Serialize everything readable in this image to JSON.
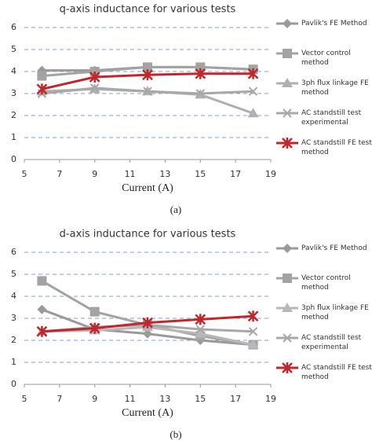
{
  "chart_data": [
    {
      "type": "line",
      "title": "q-axis inductance for various tests",
      "x_label": "Current (A)",
      "caption": "(a)",
      "x": [
        6,
        9,
        12,
        15,
        18
      ],
      "xlim": [
        5,
        19
      ],
      "xticks": [
        5,
        7,
        9,
        11,
        13,
        15,
        17,
        19
      ],
      "ylim": [
        0,
        6
      ],
      "yticks": [
        0,
        1,
        2,
        3,
        4,
        5,
        6
      ],
      "grid": true,
      "series": [
        {
          "name": "Pavlik's FE Method",
          "color": "#9a9a9a",
          "marker": "diamond",
          "values": [
            4.05,
            4.05,
            4.2,
            4.2,
            4.1
          ]
        },
        {
          "name": "Vector control method",
          "color": "#a3a3a3",
          "marker": "square",
          "values": [
            3.8,
            4.0,
            4.2,
            4.2,
            4.1
          ]
        },
        {
          "name": "3ph flux linkage FE method",
          "color": "#b0b0b0",
          "marker": "triangle",
          "values": [
            3.1,
            3.2,
            3.1,
            2.95,
            2.1
          ]
        },
        {
          "name": "AC standstill test experimental",
          "color": "#a8a8a8",
          "marker": "x",
          "values": [
            3.0,
            3.25,
            3.1,
            3.0,
            3.1
          ]
        },
        {
          "name": "AC standstill FE test method",
          "color": "#c0272d",
          "marker": "star",
          "values": [
            3.2,
            3.75,
            3.85,
            3.9,
            3.9
          ]
        }
      ]
    },
    {
      "type": "line",
      "title": "d-axis inductance for various tests",
      "x_label": "Current (A)",
      "caption": "(b)",
      "x": [
        6,
        9,
        12,
        15,
        18
      ],
      "xlim": [
        5,
        19
      ],
      "xticks": [
        5,
        7,
        9,
        11,
        13,
        15,
        17,
        19
      ],
      "ylim": [
        0,
        6
      ],
      "yticks": [
        0,
        1,
        2,
        3,
        4,
        5,
        6
      ],
      "grid": true,
      "series": [
        {
          "name": "Pavlik's FE Method",
          "color": "#9a9a9a",
          "marker": "diamond",
          "values": [
            3.4,
            2.5,
            2.3,
            2.0,
            1.8
          ]
        },
        {
          "name": "Vector control method",
          "color": "#a3a3a3",
          "marker": "square",
          "values": [
            4.7,
            3.3,
            2.7,
            2.2,
            1.8
          ]
        },
        {
          "name": "3ph flux linkage FE method",
          "color": "#b8b8b8",
          "marker": "triangle",
          "values": [
            2.4,
            2.45,
            2.6,
            2.3,
            1.8
          ]
        },
        {
          "name": "AC standstill test experimental",
          "color": "#a8a8a8",
          "marker": "x",
          "values": [
            2.4,
            2.6,
            2.7,
            2.5,
            2.4
          ]
        },
        {
          "name": "AC standstill FE test method",
          "color": "#c0272d",
          "marker": "star",
          "values": [
            2.4,
            2.55,
            2.8,
            2.95,
            3.1
          ]
        }
      ]
    }
  ]
}
